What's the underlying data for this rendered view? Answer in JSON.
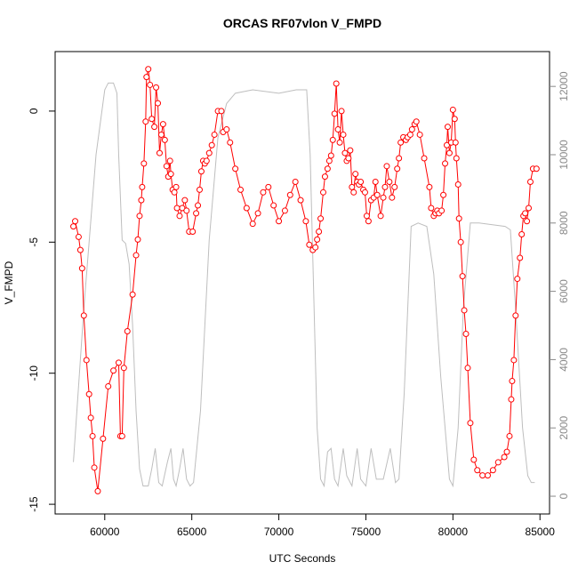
{
  "chart_data": {
    "type": "line",
    "title": "ORCAS RF07vlon V_FMPD",
    "x_label": "UTC Seconds",
    "y_label": "V_FMPD",
    "xlim": [
      57150,
      85550
    ],
    "xticks": [
      60000,
      65000,
      70000,
      75000,
      80000,
      85000
    ],
    "ylim": [
      -15.37,
      2.27
    ],
    "yticks": [
      0,
      -5,
      -10,
      -15
    ],
    "y2lim": [
      -520,
      13020
    ],
    "y2ticks": [
      0,
      2000,
      4000,
      6000,
      8000,
      10000,
      12000
    ],
    "series": [
      {
        "color": "#ff0000",
        "markers": true,
        "x": [
          58200,
          58300,
          58500,
          58600,
          58700,
          58800,
          58950,
          59100,
          59200,
          59300,
          59400,
          59600,
          59900,
          60200,
          60500,
          60800,
          60900,
          61000,
          61100,
          61300,
          61600,
          61800,
          61900,
          62000,
          62100,
          62150,
          62250,
          62350,
          62400,
          62500,
          62600,
          62700,
          62850,
          62950,
          63050,
          63150,
          63250,
          63350,
          63450,
          63550,
          63650,
          63750,
          63800,
          63900,
          64000,
          64100,
          64150,
          64300,
          64450,
          64600,
          64700,
          64850,
          65050,
          65250,
          65350,
          65450,
          65550,
          65650,
          65750,
          65850,
          66000,
          66150,
          66300,
          66500,
          66700,
          66800,
          67000,
          67200,
          67500,
          67800,
          68150,
          68500,
          68800,
          69100,
          69400,
          69700,
          70000,
          70350,
          70650,
          70950,
          71250,
          71550,
          71750,
          71950,
          72100,
          72200,
          72300,
          72400,
          72550,
          72650,
          72800,
          72900,
          73000,
          73100,
          73200,
          73300,
          73400,
          73500,
          73600,
          73700,
          73800,
          73900,
          74000,
          74100,
          74200,
          74300,
          74400,
          74500,
          74600,
          74700,
          74850,
          74950,
          75050,
          75150,
          75300,
          75450,
          75550,
          75650,
          75850,
          76000,
          76100,
          76200,
          76350,
          76500,
          76650,
          76800,
          76900,
          77000,
          77150,
          77300,
          77400,
          77550,
          77650,
          77800,
          77900,
          78100,
          78350,
          78650,
          78750,
          78900,
          79000,
          79100,
          79200,
          79350,
          79450,
          79550,
          79650,
          79700,
          79800,
          79900,
          80000,
          80100,
          80150,
          80200,
          80300,
          80350,
          80450,
          80550,
          80650,
          80750,
          80850,
          81000,
          81200,
          81400,
          81700,
          82000,
          82300,
          82600,
          82950,
          83100,
          83250,
          83350,
          83400,
          83500,
          83600,
          83700,
          83850,
          83950,
          84050,
          84150,
          84250,
          84350,
          84450,
          84600,
          84800
        ],
        "values": [
          -4.4,
          -4.2,
          -4.8,
          -5.3,
          -6.0,
          -7.8,
          -9.5,
          -10.8,
          -11.7,
          -12.4,
          -13.6,
          -14.5,
          -12.5,
          -10.5,
          -9.9,
          -9.6,
          -12.4,
          -12.4,
          -9.8,
          -8.4,
          -7.0,
          -5.5,
          -4.9,
          -4.0,
          -3.4,
          -2.9,
          -2.0,
          -0.4,
          1.3,
          1.6,
          1.0,
          -0.3,
          -0.6,
          0.9,
          0.3,
          -1.6,
          -0.9,
          -0.5,
          -1.1,
          -2.1,
          -2.5,
          -1.9,
          -2.4,
          -3.0,
          -3.1,
          -2.9,
          -3.7,
          -4.0,
          -3.7,
          -3.4,
          -3.8,
          -4.6,
          -4.6,
          -3.9,
          -3.6,
          -3.0,
          -2.3,
          -1.9,
          -2.0,
          -1.9,
          -1.6,
          -1.3,
          -0.9,
          0.0,
          0.0,
          -0.8,
          -0.7,
          -1.2,
          -2.2,
          -3.0,
          -3.7,
          -4.3,
          -3.9,
          -3.1,
          -2.9,
          -3.6,
          -4.2,
          -3.8,
          -3.2,
          -2.7,
          -3.4,
          -4.2,
          -5.1,
          -5.3,
          -5.2,
          -4.9,
          -4.6,
          -4.1,
          -3.1,
          -2.5,
          -2.2,
          -1.9,
          -1.7,
          -1.1,
          -0.1,
          1.05,
          -0.7,
          -1.2,
          0.0,
          -0.9,
          -1.6,
          -1.9,
          -1.8,
          -1.5,
          -2.9,
          -3.1,
          -2.4,
          -2.7,
          -2.8,
          -2.7,
          -3.0,
          -3.1,
          -4.0,
          -4.2,
          -3.4,
          -3.3,
          -2.7,
          -3.2,
          -4.0,
          -3.3,
          -2.9,
          -2.1,
          -2.7,
          -3.3,
          -2.9,
          -2.2,
          -1.8,
          -1.2,
          -1.0,
          -1.1,
          -1.0,
          -0.9,
          -0.7,
          -0.5,
          -0.4,
          -0.9,
          -1.8,
          -2.9,
          -3.7,
          -4.0,
          -3.9,
          -3.8,
          -3.9,
          -3.8,
          -3.2,
          -2.0,
          -1.3,
          -0.6,
          -1.6,
          -1.2,
          0.05,
          -0.3,
          -1.2,
          -1.8,
          -2.8,
          -4.1,
          -5.0,
          -6.3,
          -7.6,
          -8.5,
          -9.8,
          -11.9,
          -13.3,
          -13.7,
          -13.9,
          -13.9,
          -13.7,
          -13.4,
          -13.2,
          -13.0,
          -12.4,
          -11.0,
          -10.3,
          -9.5,
          -7.8,
          -6.4,
          -5.6,
          -4.7,
          -4.0,
          -3.9,
          -4.2,
          -3.7,
          -2.7,
          -2.2,
          -2.2
        ]
      },
      {
        "color": "#bebebe",
        "axis": "y2",
        "markers": false,
        "x": [
          58200,
          58800,
          59500,
          60000,
          60200,
          60500,
          60700,
          60800,
          61000,
          61200,
          61400,
          61600,
          61800,
          62000,
          62200,
          62500,
          62700,
          62900,
          63100,
          63300,
          63600,
          63800,
          63950,
          64100,
          64300,
          64500,
          64700,
          64900,
          65100,
          65500,
          66000,
          66500,
          67000,
          67500,
          68500,
          70000,
          71000,
          71600,
          71800,
          72000,
          72200,
          72400,
          72600,
          72800,
          73000,
          73200,
          73400,
          73700,
          73900,
          74200,
          74500,
          74700,
          75000,
          75300,
          75600,
          76000,
          76400,
          76700,
          76900,
          77200,
          77600,
          78000,
          78500,
          78900,
          79300,
          79800,
          80000,
          80300,
          80600,
          81000,
          81500,
          83000,
          83300,
          83600,
          84000,
          84300,
          84500,
          84700
        ],
        "values": [
          1000,
          5500,
          10000,
          11900,
          12100,
          12100,
          11800,
          10000,
          7500,
          7400,
          6800,
          5000,
          2500,
          800,
          300,
          300,
          800,
          1400,
          400,
          300,
          1000,
          1400,
          500,
          300,
          800,
          1400,
          500,
          300,
          400,
          2500,
          7500,
          10500,
          11500,
          11800,
          11900,
          11800,
          11900,
          11900,
          10000,
          6000,
          2000,
          500,
          300,
          1300,
          1400,
          500,
          300,
          1400,
          600,
          300,
          1400,
          500,
          300,
          1400,
          500,
          500,
          1400,
          400,
          500,
          3000,
          7900,
          8000,
          7900,
          6500,
          3500,
          500,
          300,
          2000,
          5500,
          8000,
          8000,
          7900,
          7800,
          5500,
          2000,
          600,
          400,
          400
        ]
      }
    ]
  }
}
